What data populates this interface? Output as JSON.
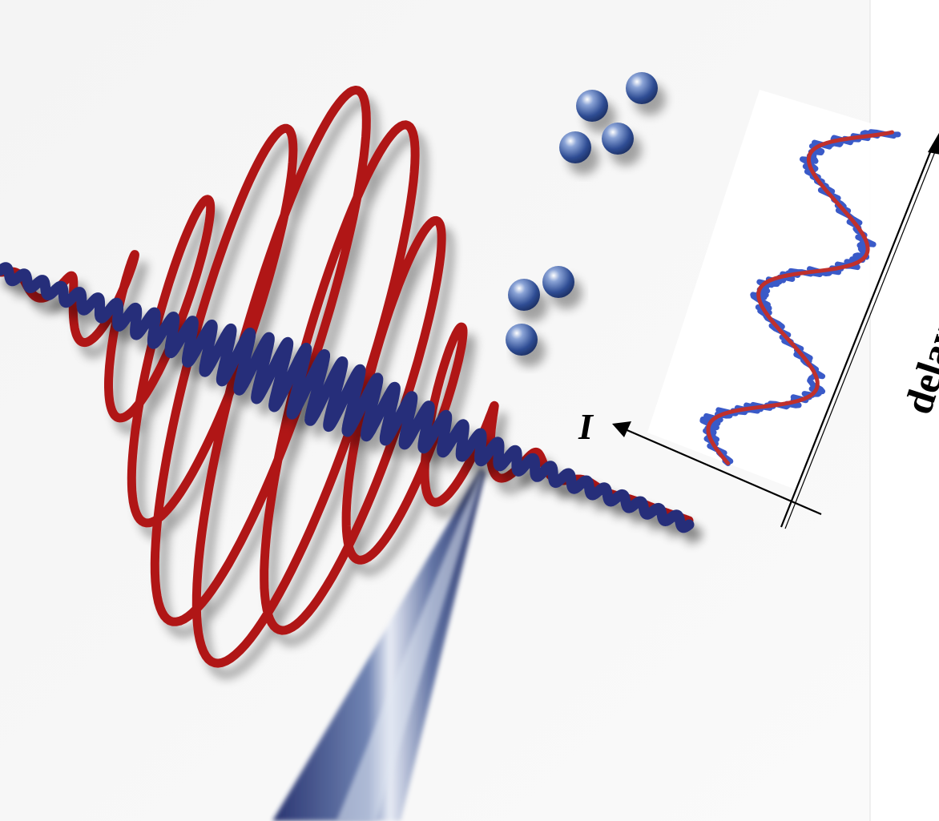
{
  "labels": {
    "intensity_axis": "I",
    "delay_axis": "delay"
  },
  "colors": {
    "red_wave": "#b01616",
    "blue_wave": "#262f7a",
    "sphere": "#2f4d94",
    "inset_data": "#3a5ac8",
    "inset_fit": "#c0302c",
    "background": "#f7f7f7"
  },
  "icons": {
    "sphere_cluster": "molecule-icon",
    "tip": "probe-tip-icon"
  }
}
